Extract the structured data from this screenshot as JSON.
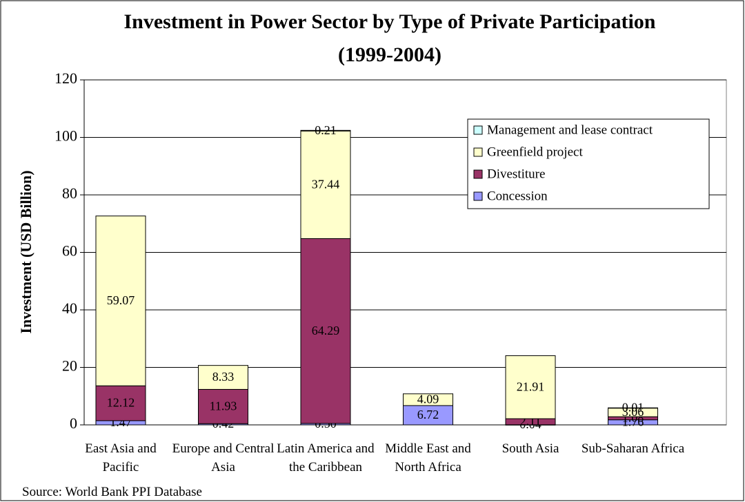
{
  "chart_data": {
    "type": "stacked_bar",
    "title": "Investment in Power Sector by Type of Private Participation (1999-2004)",
    "ylabel": "Investment (USD Billion)",
    "source": "Source: World Bank PPI Database",
    "categories": [
      "East Asia and Pacific",
      "Europe and Central Asia",
      "Latin America and the Caribbean",
      "Middle East and North Africa",
      "South Asia",
      "Sub-Saharan Africa"
    ],
    "series": [
      {
        "name": "Concession",
        "color": "#9999ff",
        "values": [
          1.47,
          0.42,
          0.5,
          6.72,
          0.04,
          1.76
        ],
        "value_labels": [
          "1.47",
          "0.42",
          "0.50",
          "6.72",
          "0.04",
          "1.76"
        ]
      },
      {
        "name": "Divestiture",
        "color": "#993366",
        "values": [
          12.12,
          11.93,
          64.29,
          null,
          2.11,
          1.08
        ],
        "value_labels": [
          "12.12",
          "11.93",
          "64.29",
          null,
          "2.11",
          "1.08"
        ]
      },
      {
        "name": "Greenfield project",
        "color": "#ffffcc",
        "values": [
          59.07,
          8.33,
          37.44,
          4.09,
          21.91,
          3.06
        ],
        "value_labels": [
          "59.07",
          "8.33",
          "37.44",
          "4.09",
          "21.91",
          "3.06"
        ]
      },
      {
        "name": "Management and lease contract",
        "color": "#ccffff",
        "values": [
          null,
          null,
          0.21,
          null,
          null,
          0.01
        ],
        "value_labels": [
          null,
          null,
          "0.21",
          null,
          null,
          "0.01"
        ]
      }
    ],
    "ylim": [
      0,
      120
    ],
    "yticks": [
      0,
      20,
      40,
      60,
      80,
      100,
      120
    ],
    "grid": true,
    "legend": "upper right"
  }
}
